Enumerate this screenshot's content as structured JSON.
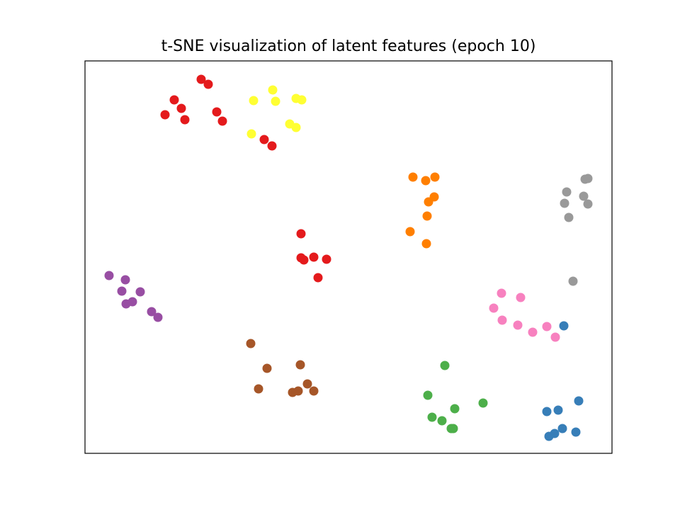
{
  "chart_data": {
    "type": "scatter",
    "title": "t-SNE visualization of latent features (epoch 10)",
    "xlim": [
      0,
      744
    ],
    "ylim": [
      0,
      554
    ],
    "series": [
      {
        "color": "#e41a1c",
        "x": [
          164,
          174,
          126,
          136,
          113,
          141,
          186,
          194,
          253,
          264,
          305,
          305,
          309,
          323,
          341,
          329
        ],
        "values": [
          528,
          521,
          499,
          487,
          478,
          471,
          482,
          469,
          443,
          434,
          310,
          276,
          273,
          277,
          274,
          248
        ]
      },
      {
        "color": "#ffff33",
        "x": [
          265,
          238,
          269,
          298,
          306,
          235,
          289,
          298
        ],
        "values": [
          513,
          498,
          497,
          501,
          499,
          451,
          465,
          460
        ]
      },
      {
        "color": "#ff7f00",
        "x": [
          463,
          481,
          494,
          493,
          485,
          483,
          459,
          482
        ],
        "values": [
          390,
          385,
          390,
          362,
          355,
          335,
          313,
          296
        ]
      },
      {
        "color": "#999999",
        "x": [
          706,
          710,
          680,
          704,
          677,
          710,
          683,
          689
        ],
        "values": [
          387,
          388,
          369,
          363,
          353,
          352,
          333,
          243
        ]
      },
      {
        "color": "#984ea3",
        "x": [
          34,
          57,
          52,
          78,
          58,
          67,
          94,
          103
        ],
        "values": [
          251,
          245,
          229,
          228,
          211,
          214,
          200,
          192
        ]
      },
      {
        "color": "#f781bf",
        "x": [
          588,
          615,
          577,
          589,
          611,
          632,
          652,
          664
        ],
        "values": [
          226,
          220,
          205,
          188,
          181,
          171,
          179,
          164
        ]
      },
      {
        "color": "#377eb8",
        "x": [
          676,
          697,
          652,
          668,
          674,
          663,
          655,
          693
        ],
        "values": [
          180,
          74,
          59,
          61,
          35,
          28,
          24,
          30
        ]
      },
      {
        "color": "#a65628",
        "x": [
          234,
          257,
          304,
          245,
          314,
          293,
          301,
          323
        ],
        "values": [
          155,
          120,
          125,
          91,
          98,
          86,
          88,
          88
        ]
      },
      {
        "color": "#4daf4a",
        "x": [
          508,
          484,
          562,
          522,
          490,
          504,
          517,
          520
        ],
        "values": [
          124,
          82,
          71,
          63,
          51,
          46,
          35,
          35
        ]
      }
    ]
  }
}
